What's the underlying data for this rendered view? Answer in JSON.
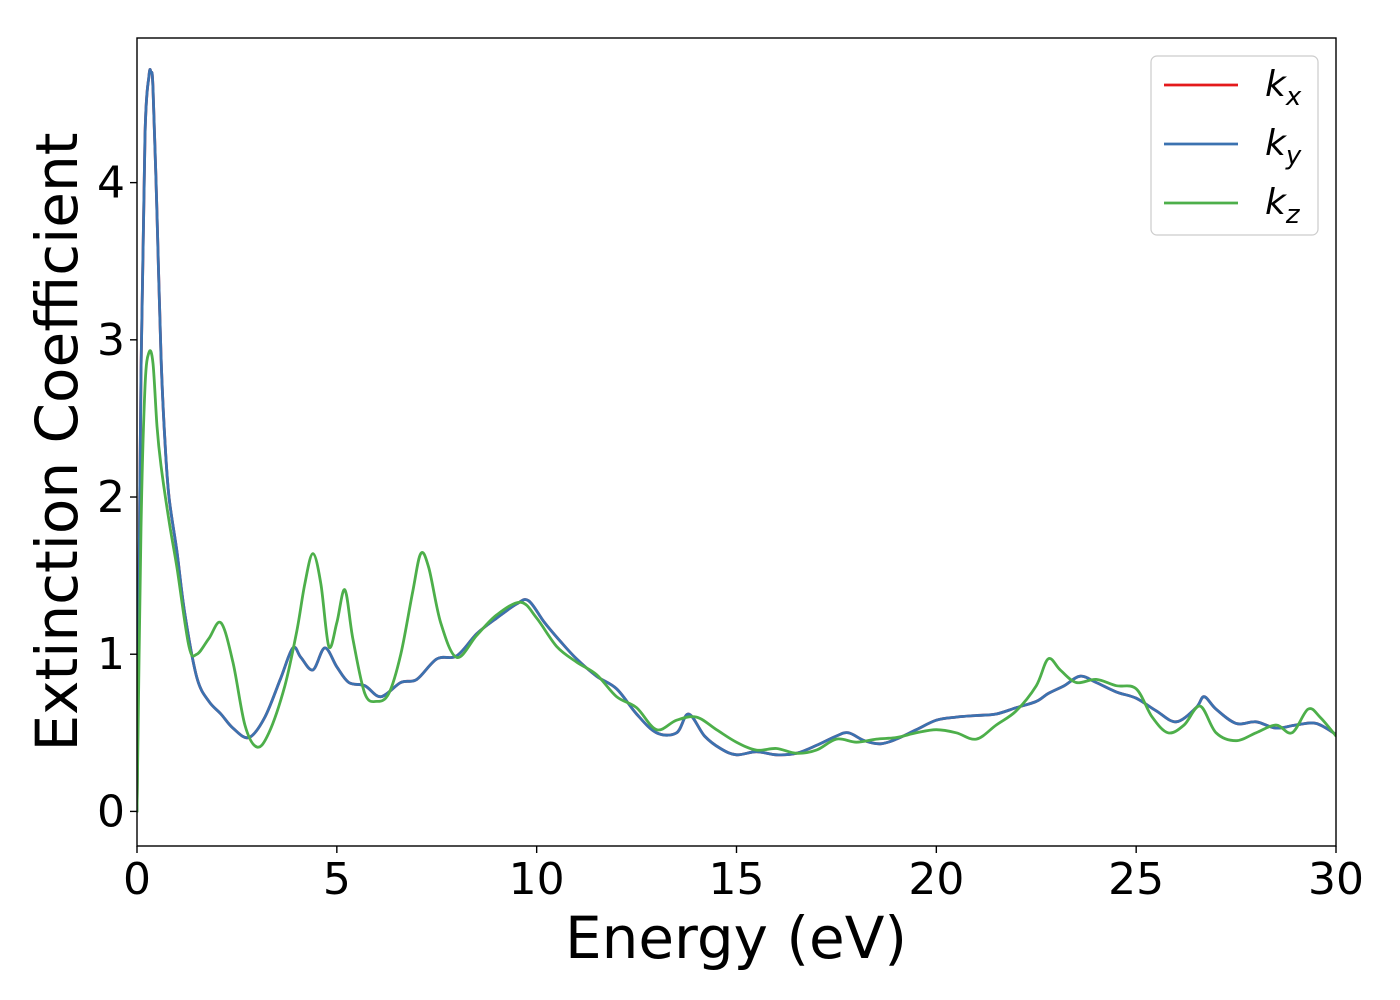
{
  "chart_data": {
    "type": "line",
    "xlabel": "Energy (eV)",
    "ylabel": "Extinction Coefficient",
    "xlim": [
      0,
      30
    ],
    "ylim": [
      -0.22,
      4.92
    ],
    "xticks": [
      0,
      5,
      10,
      15,
      20,
      25,
      30
    ],
    "yticks": [
      0,
      1,
      2,
      3,
      4
    ],
    "grid": false,
    "legend_position": "top-right",
    "series": [
      {
        "name": "k_x",
        "label_main": "k",
        "label_sub": "x",
        "color": "#e41a1c",
        "x": [
          0,
          0.1,
          0.2,
          0.3,
          0.35,
          0.4,
          0.5,
          0.6,
          0.7,
          0.8,
          1.0,
          1.2,
          1.5,
          1.8,
          2.1,
          2.4,
          2.8,
          3.2,
          3.6,
          3.9,
          4.1,
          4.4,
          4.7,
          5.0,
          5.3,
          5.7,
          6.1,
          6.6,
          7.0,
          7.5,
          8.0,
          8.5,
          9.0,
          9.5,
          9.8,
          10.2,
          10.6,
          11.0,
          11.5,
          12.0,
          12.5,
          13.0,
          13.5,
          13.8,
          14.2,
          14.6,
          15.0,
          15.5,
          16.0,
          16.5,
          17.0,
          17.5,
          17.8,
          18.2,
          18.6,
          19.0,
          19.5,
          20.0,
          20.5,
          21.0,
          21.5,
          22.0,
          22.5,
          22.8,
          23.2,
          23.6,
          24.0,
          24.5,
          25.0,
          25.5,
          26.0,
          26.5,
          26.7,
          27.0,
          27.5,
          28.0,
          28.5,
          29.0,
          29.5,
          30.0
        ],
        "values": [
          0,
          2.8,
          4.3,
          4.68,
          4.7,
          4.6,
          3.8,
          2.9,
          2.35,
          2.0,
          1.65,
          1.25,
          0.85,
          0.7,
          0.62,
          0.53,
          0.47,
          0.6,
          0.85,
          1.04,
          0.98,
          0.9,
          1.04,
          0.92,
          0.82,
          0.8,
          0.73,
          0.82,
          0.84,
          0.97,
          0.99,
          1.13,
          1.23,
          1.32,
          1.34,
          1.2,
          1.08,
          0.97,
          0.86,
          0.78,
          0.62,
          0.5,
          0.5,
          0.62,
          0.48,
          0.4,
          0.36,
          0.38,
          0.36,
          0.37,
          0.42,
          0.48,
          0.5,
          0.45,
          0.43,
          0.46,
          0.52,
          0.58,
          0.6,
          0.61,
          0.62,
          0.66,
          0.7,
          0.75,
          0.8,
          0.86,
          0.82,
          0.76,
          0.72,
          0.64,
          0.57,
          0.66,
          0.73,
          0.65,
          0.56,
          0.57,
          0.53,
          0.55,
          0.56,
          0.49
        ]
      },
      {
        "name": "k_y",
        "label_main": "k",
        "label_sub": "y",
        "color": "#3b72b0",
        "x": [
          0,
          0.1,
          0.2,
          0.3,
          0.35,
          0.4,
          0.5,
          0.6,
          0.7,
          0.8,
          1.0,
          1.2,
          1.5,
          1.8,
          2.1,
          2.4,
          2.8,
          3.2,
          3.6,
          3.9,
          4.1,
          4.4,
          4.7,
          5.0,
          5.3,
          5.7,
          6.1,
          6.6,
          7.0,
          7.5,
          8.0,
          8.5,
          9.0,
          9.5,
          9.8,
          10.2,
          10.6,
          11.0,
          11.5,
          12.0,
          12.5,
          13.0,
          13.5,
          13.8,
          14.2,
          14.6,
          15.0,
          15.5,
          16.0,
          16.5,
          17.0,
          17.5,
          17.8,
          18.2,
          18.6,
          19.0,
          19.5,
          20.0,
          20.5,
          21.0,
          21.5,
          22.0,
          22.5,
          22.8,
          23.2,
          23.6,
          24.0,
          24.5,
          25.0,
          25.5,
          26.0,
          26.5,
          26.7,
          27.0,
          27.5,
          28.0,
          28.5,
          29.0,
          29.5,
          30.0
        ],
        "values": [
          0,
          2.8,
          4.3,
          4.68,
          4.7,
          4.6,
          3.8,
          2.9,
          2.35,
          2.0,
          1.65,
          1.25,
          0.85,
          0.7,
          0.62,
          0.53,
          0.47,
          0.6,
          0.85,
          1.04,
          0.98,
          0.9,
          1.04,
          0.92,
          0.82,
          0.8,
          0.73,
          0.82,
          0.84,
          0.97,
          0.99,
          1.13,
          1.23,
          1.32,
          1.34,
          1.2,
          1.08,
          0.97,
          0.86,
          0.78,
          0.62,
          0.5,
          0.5,
          0.62,
          0.48,
          0.4,
          0.36,
          0.38,
          0.36,
          0.37,
          0.42,
          0.48,
          0.5,
          0.45,
          0.43,
          0.46,
          0.52,
          0.58,
          0.6,
          0.61,
          0.62,
          0.66,
          0.7,
          0.75,
          0.8,
          0.86,
          0.82,
          0.76,
          0.72,
          0.64,
          0.57,
          0.66,
          0.73,
          0.65,
          0.56,
          0.57,
          0.53,
          0.55,
          0.56,
          0.49
        ]
      },
      {
        "name": "k_z",
        "label_main": "k",
        "label_sub": "z",
        "color": "#4daf4a",
        "x": [
          0,
          0.1,
          0.2,
          0.3,
          0.4,
          0.5,
          0.6,
          0.8,
          1.0,
          1.3,
          1.5,
          1.8,
          2.1,
          2.4,
          2.7,
          3.0,
          3.3,
          3.7,
          4.0,
          4.2,
          4.4,
          4.6,
          4.8,
          5.0,
          5.2,
          5.4,
          5.7,
          6.0,
          6.3,
          6.6,
          6.9,
          7.1,
          7.3,
          7.6,
          8.0,
          8.5,
          9.0,
          9.6,
          10.0,
          10.5,
          11.0,
          11.5,
          12.0,
          12.5,
          13.0,
          13.5,
          14.0,
          14.5,
          15.0,
          15.5,
          16.0,
          16.5,
          17.0,
          17.5,
          18.0,
          18.5,
          19.0,
          19.5,
          20.0,
          20.5,
          21.0,
          21.5,
          22.0,
          22.5,
          22.8,
          23.1,
          23.5,
          24.0,
          24.5,
          25.0,
          25.4,
          25.8,
          26.2,
          26.6,
          27.0,
          27.5,
          28.0,
          28.5,
          28.9,
          29.3,
          29.6,
          30.0
        ],
        "values": [
          0,
          1.8,
          2.7,
          2.92,
          2.85,
          2.45,
          2.2,
          1.85,
          1.55,
          1.05,
          1.0,
          1.1,
          1.2,
          0.95,
          0.55,
          0.41,
          0.5,
          0.8,
          1.15,
          1.45,
          1.64,
          1.45,
          1.05,
          1.2,
          1.41,
          1.1,
          0.75,
          0.7,
          0.75,
          1.0,
          1.4,
          1.64,
          1.55,
          1.2,
          0.98,
          1.12,
          1.25,
          1.33,
          1.23,
          1.05,
          0.95,
          0.87,
          0.73,
          0.66,
          0.52,
          0.58,
          0.6,
          0.52,
          0.44,
          0.39,
          0.4,
          0.37,
          0.39,
          0.46,
          0.44,
          0.46,
          0.47,
          0.5,
          0.52,
          0.5,
          0.46,
          0.55,
          0.64,
          0.8,
          0.97,
          0.9,
          0.82,
          0.84,
          0.8,
          0.78,
          0.6,
          0.5,
          0.55,
          0.67,
          0.5,
          0.45,
          0.5,
          0.55,
          0.5,
          0.65,
          0.6,
          0.48
        ]
      }
    ]
  }
}
